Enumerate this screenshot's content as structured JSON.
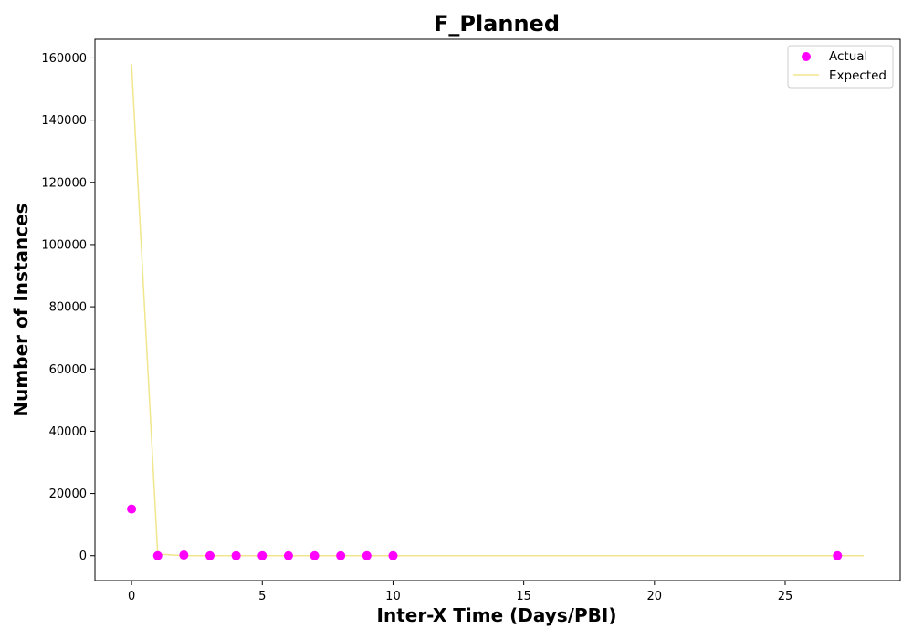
{
  "chart_data": {
    "type": "scatter",
    "title": "F_Planned",
    "xlabel": "Inter-X Time (Days/PBI)",
    "ylabel": "Number of Instances",
    "xlim": [
      -1.4,
      29.4
    ],
    "ylim": [
      -8000,
      166000
    ],
    "xticks": [
      0,
      5,
      10,
      15,
      20,
      25
    ],
    "yticks": [
      0,
      20000,
      40000,
      60000,
      80000,
      100000,
      120000,
      140000,
      160000
    ],
    "grid": false,
    "legend_position": "top-right",
    "series": [
      {
        "name": "Actual",
        "kind": "scatter",
        "color": "#ff00ff",
        "x": [
          0,
          1,
          2,
          3,
          4,
          5,
          6,
          7,
          8,
          9,
          10,
          27
        ],
        "y": [
          15000,
          0,
          200,
          0,
          0,
          0,
          0,
          0,
          0,
          0,
          0,
          0
        ]
      },
      {
        "name": "Expected",
        "kind": "line",
        "color": "#f0e68c",
        "x": [
          0,
          1,
          2,
          3,
          4,
          5,
          6,
          7,
          8,
          9,
          10,
          11,
          12,
          13,
          14,
          15,
          16,
          17,
          18,
          19,
          20,
          21,
          22,
          23,
          24,
          25,
          26,
          27,
          28
        ],
        "y": [
          158000,
          500,
          0,
          0,
          0,
          0,
          0,
          0,
          0,
          0,
          0,
          0,
          0,
          0,
          0,
          0,
          0,
          0,
          0,
          0,
          0,
          0,
          0,
          0,
          0,
          0,
          0,
          0,
          0
        ]
      }
    ]
  }
}
